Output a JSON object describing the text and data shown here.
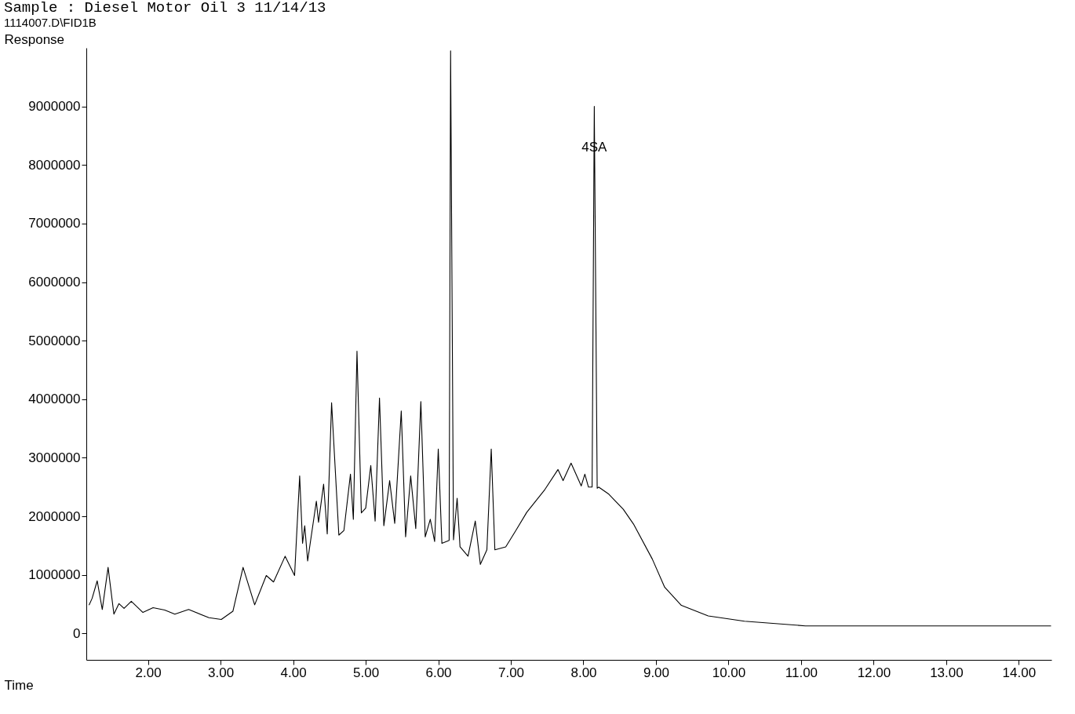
{
  "chart_data": {
    "type": "line",
    "title": "Sample    : Diesel Motor Oil 3 11/14/13",
    "subtitle": "1114007.D\\FID1B",
    "xlabel": "Time",
    "ylabel": "Response",
    "x": [
      1.19,
      1.23,
      1.3,
      1.37,
      1.45,
      1.53,
      1.6,
      1.67,
      1.77,
      1.93,
      2.07,
      2.23,
      2.37,
      2.56,
      2.84,
      3.01,
      3.17,
      3.31,
      3.47,
      3.63,
      3.73,
      3.89,
      4.02,
      4.09,
      4.13,
      4.16,
      4.2,
      4.32,
      4.35,
      4.42,
      4.47,
      4.53,
      4.63,
      4.7,
      4.79,
      4.83,
      4.88,
      4.94,
      5.0,
      5.07,
      5.13,
      5.19,
      5.25,
      5.33,
      5.4,
      5.49,
      5.55,
      5.62,
      5.69,
      5.76,
      5.82,
      5.89,
      5.95,
      6.0,
      6.05,
      6.15,
      6.17,
      6.21,
      6.26,
      6.3,
      6.41,
      6.51,
      6.58,
      6.67,
      6.73,
      6.78,
      6.93,
      7.07,
      7.22,
      7.47,
      7.65,
      7.72,
      7.83,
      7.97,
      8.02,
      8.07,
      8.12,
      8.15,
      8.19,
      8.21,
      8.35,
      8.55,
      8.69,
      8.95,
      9.12,
      9.35,
      9.72,
      10.22,
      11.06,
      12.2,
      14.44
    ],
    "series": [
      {
        "color": "#000000",
        "values": [
          490000,
          600000,
          900000,
          410000,
          1130000,
          330000,
          510000,
          430000,
          550000,
          360000,
          440000,
          400000,
          330000,
          410000,
          270000,
          240000,
          380000,
          1130000,
          490000,
          990000,
          880000,
          1320000,
          990000,
          2690000,
          1540000,
          1840000,
          1240000,
          2260000,
          1900000,
          2550000,
          1700000,
          3940000,
          1680000,
          1760000,
          2720000,
          1950000,
          4820000,
          2060000,
          2140000,
          2870000,
          1920000,
          4020000,
          1840000,
          2610000,
          1880000,
          3800000,
          1650000,
          2690000,
          1790000,
          3960000,
          1650000,
          1950000,
          1570000,
          3150000,
          1540000,
          1590000,
          9950000,
          1600000,
          2310000,
          1480000,
          1320000,
          1920000,
          1180000,
          1430000,
          3150000,
          1430000,
          1480000,
          1760000,
          2070000,
          2460000,
          2800000,
          2610000,
          2910000,
          2520000,
          2720000,
          2500000,
          2500000,
          9000000,
          2480000,
          2500000,
          2380000,
          2120000,
          1870000,
          1270000,
          790000,
          480000,
          300000,
          210000,
          130000,
          130000,
          130000
        ]
      }
    ],
    "xlim": [
      1.15,
      14.45
    ],
    "ylim": [
      -450000,
      10000000
    ],
    "xticks": [
      {
        "value": 2,
        "label": "2.00"
      },
      {
        "value": 3,
        "label": "3.00"
      },
      {
        "value": 4,
        "label": "4.00"
      },
      {
        "value": 5,
        "label": "5.00"
      },
      {
        "value": 6,
        "label": "6.00"
      },
      {
        "value": 7,
        "label": "7.00"
      },
      {
        "value": 8,
        "label": "8.00"
      },
      {
        "value": 9,
        "label": "9.00"
      },
      {
        "value": 10,
        "label": "10.00"
      },
      {
        "value": 11,
        "label": "11.00"
      },
      {
        "value": 12,
        "label": "12.00"
      },
      {
        "value": 13,
        "label": "13.00"
      },
      {
        "value": 14,
        "label": "14.00"
      }
    ],
    "yticks": [
      0,
      1000000,
      2000000,
      3000000,
      4000000,
      5000000,
      6000000,
      7000000,
      8000000,
      9000000
    ],
    "annotations": [
      {
        "text": "4SA",
        "x": 8.15,
        "y": 8300000
      }
    ],
    "grid": false,
    "marker": "none",
    "line_style": "solid"
  }
}
